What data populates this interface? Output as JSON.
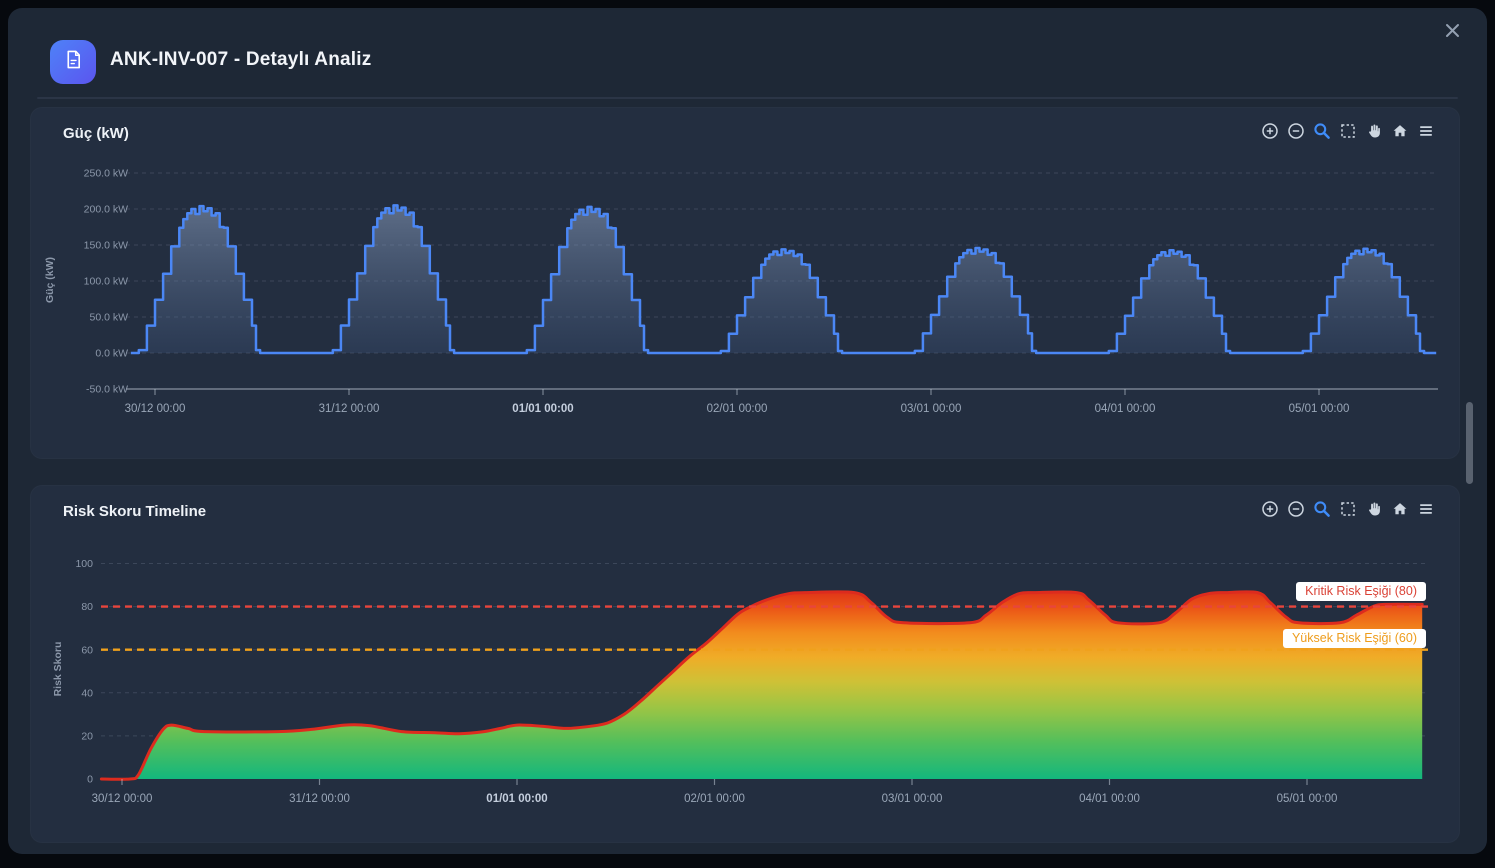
{
  "modal": {
    "title": "ANK-INV-007 - Detaylı Analiz"
  },
  "modebar": {
    "buttons": [
      "zoom-in",
      "zoom-out",
      "zoom",
      "box-select",
      "pan",
      "home",
      "menu"
    ],
    "active": "zoom",
    "icon_color": "#cdd6e0",
    "active_color": "#3f8cf8"
  },
  "chart_data": [
    {
      "type": "area",
      "title": "Güç (kW)",
      "ylabel": "Güç (kW)",
      "line_shape": "steps-hourly",
      "x_ticks": [
        "30/12 00:00",
        "31/12 00:00",
        "01/01 00:00",
        "02/01 00:00",
        "03/01 00:00",
        "04/01 00:00",
        "05/01 00:00"
      ],
      "bold_x_tick": "01/01 00:00",
      "y_tick_labels": [
        "250.0 kW",
        "200.0 kW",
        "150.0 kW",
        "100.0 kW",
        "50.0 kW",
        "0.0 kW",
        "-50.0 kW"
      ],
      "y_tick_values": [
        250,
        200,
        150,
        100,
        50,
        0,
        -50
      ],
      "ylim": [
        -50,
        262
      ],
      "xrange_hours_from_3012_0000": [
        -3.7,
        158.6
      ],
      "line_color": "#4b87f5",
      "fill_top": "rgba(151,172,206,0.5)",
      "fill_bottom": "rgba(62,86,126,0.3)",
      "grid": true,
      "days": [
        {
          "date": "30/12",
          "peak_kw": 200
        },
        {
          "date": "31/12",
          "peak_kw": 201
        },
        {
          "date": "01/01",
          "peak_kw": 199
        },
        {
          "date": "02/01",
          "peak_kw": 141
        },
        {
          "date": "03/01",
          "peak_kw": 143
        },
        {
          "date": "04/01",
          "peak_kw": 140
        },
        {
          "date": "05/01",
          "peak_kw": 142
        }
      ],
      "hourly_profile_frac": [
        [
          -3,
          0
        ],
        [
          -2,
          0.02
        ],
        [
          -1,
          0.19
        ],
        [
          0,
          0.37
        ],
        [
          1,
          0.55
        ],
        [
          2,
          0.74
        ],
        [
          3,
          0.87
        ],
        [
          3.5,
          0.93
        ],
        [
          4,
          0.97
        ],
        [
          4.5,
          1.0
        ],
        [
          5,
          0.965
        ],
        [
          5.5,
          1.02
        ],
        [
          6,
          0.985
        ],
        [
          6.5,
          1.005
        ],
        [
          7,
          0.955
        ],
        [
          7.5,
          0.97
        ],
        [
          8,
          0.875
        ],
        [
          8.5,
          0.87
        ],
        [
          9,
          0.74
        ],
        [
          10,
          0.55
        ],
        [
          11,
          0.37
        ],
        [
          12,
          0.19
        ],
        [
          12.5,
          0.02
        ],
        [
          13,
          0
        ]
      ]
    },
    {
      "type": "area",
      "title": "Risk Skoru Timeline",
      "ylabel": "Risk Skoru",
      "line_shape": "spline",
      "x_ticks": [
        "30/12 00:00",
        "31/12 00:00",
        "01/01 00:00",
        "02/01 00:00",
        "03/01 00:00",
        "04/01 00:00",
        "05/01 00:00"
      ],
      "bold_x_tick": "01/01 00:00",
      "y_tick_labels": [
        "100",
        "80",
        "60",
        "40",
        "20",
        "0"
      ],
      "y_tick_values": [
        100,
        80,
        60,
        40,
        20,
        0
      ],
      "ylim": [
        0,
        100
      ],
      "line_color": "#dd2b1e",
      "grid": true,
      "gradient_stops": [
        {
          "offset": 0,
          "color": "#13b77d"
        },
        {
          "offset": 0.2,
          "color": "#54bf5b"
        },
        {
          "offset": 0.38,
          "color": "#9cc544"
        },
        {
          "offset": 0.52,
          "color": "#cfc136"
        },
        {
          "offset": 0.65,
          "color": "#f0ac27"
        },
        {
          "offset": 0.78,
          "color": "#f28c1d"
        },
        {
          "offset": 0.9,
          "color": "#ec5a17"
        },
        {
          "offset": 1,
          "color": "#e03418"
        }
      ],
      "thresholds": [
        {
          "value": 80,
          "label": "Kritik Risk Eşiği (80)",
          "color": "#e8453c"
        },
        {
          "value": 60,
          "label": "Yüksek Risk Eşiği (60)",
          "color": "#f0a11c"
        }
      ],
      "points_t_hours_value": [
        [
          -2.5,
          0
        ],
        [
          1,
          0
        ],
        [
          2,
          2
        ],
        [
          3.5,
          14
        ],
        [
          5,
          23
        ],
        [
          6,
          25
        ],
        [
          8,
          23.5
        ],
        [
          10,
          22
        ],
        [
          19,
          22
        ],
        [
          23,
          23
        ],
        [
          27,
          25
        ],
        [
          30,
          24.8
        ],
        [
          34,
          22
        ],
        [
          38,
          21.5
        ],
        [
          41,
          21
        ],
        [
          44,
          22
        ],
        [
          46,
          23.5
        ],
        [
          48,
          25
        ],
        [
          51,
          24.5
        ],
        [
          54,
          23.5
        ],
        [
          57,
          24.5
        ],
        [
          59,
          26
        ],
        [
          61,
          30
        ],
        [
          63,
          36
        ],
        [
          65,
          43
        ],
        [
          67,
          50
        ],
        [
          69,
          57
        ],
        [
          71,
          63
        ],
        [
          73,
          70
        ],
        [
          75,
          77
        ],
        [
          77,
          81
        ],
        [
          79,
          84
        ],
        [
          81,
          86
        ],
        [
          83,
          86.5
        ],
        [
          89,
          86.5
        ],
        [
          91,
          82
        ],
        [
          93,
          75
        ],
        [
          95,
          72.5
        ],
        [
          103,
          72.5
        ],
        [
          105,
          76
        ],
        [
          107,
          82
        ],
        [
          109,
          86
        ],
        [
          111,
          86.5
        ],
        [
          116,
          86.5
        ],
        [
          117.5,
          83
        ],
        [
          119.5,
          76
        ],
        [
          121,
          72.5
        ],
        [
          126,
          72.5
        ],
        [
          128,
          77
        ],
        [
          130,
          83.5
        ],
        [
          132,
          86
        ],
        [
          134,
          86.5
        ],
        [
          138,
          86.5
        ],
        [
          139.5,
          82
        ],
        [
          141.5,
          75
        ],
        [
          143,
          72.5
        ],
        [
          148,
          72.5
        ],
        [
          150,
          76
        ],
        [
          152,
          80
        ],
        [
          153.5,
          81
        ],
        [
          158,
          81
        ]
      ]
    }
  ]
}
